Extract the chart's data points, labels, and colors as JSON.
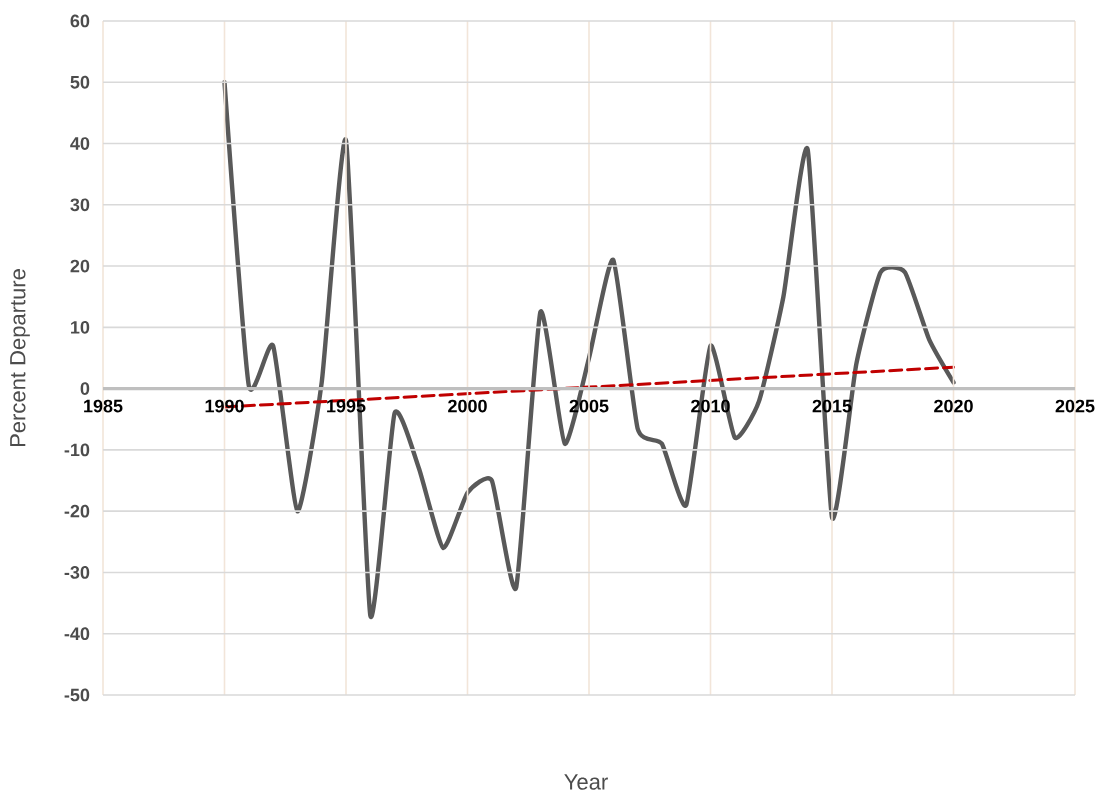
{
  "chart_data": {
    "type": "line",
    "xlabel": "Year",
    "ylabel": "Percent  Departure",
    "xlim": [
      1985,
      2025
    ],
    "ylim": [
      -50,
      60
    ],
    "xticks": [
      1985,
      1990,
      1995,
      2000,
      2005,
      2010,
      2015,
      2020,
      2025
    ],
    "yticks": [
      -50,
      -40,
      -30,
      -20,
      -10,
      0,
      10,
      20,
      30,
      40,
      50,
      60
    ],
    "grid": true,
    "series": [
      {
        "color": "#595959",
        "line_style": "solid",
        "x": [
          1990,
          1991,
          1992,
          1993,
          1994,
          1995,
          1996,
          1997,
          1998,
          1999,
          2000,
          2001,
          2002,
          2003,
          2004,
          2005,
          2006,
          2007,
          2008,
          2009,
          2010,
          2011,
          2012,
          2013,
          2014,
          2015,
          2016,
          2017,
          2018,
          2019,
          2020
        ],
        "values": [
          50,
          0.5,
          7,
          -20,
          1,
          40.5,
          -37,
          -4,
          -13,
          -26,
          -17,
          -15,
          -32.5,
          12.5,
          -9,
          5,
          21,
          -6.5,
          -9,
          -19,
          7,
          -8,
          -2,
          15,
          39,
          -21,
          4,
          19,
          19,
          8,
          1
        ]
      },
      {
        "type": "line",
        "color": "#c00000",
        "line_style": "dashed",
        "x": [
          1990,
          2020
        ],
        "values": [
          -3,
          3.5
        ]
      }
    ]
  }
}
